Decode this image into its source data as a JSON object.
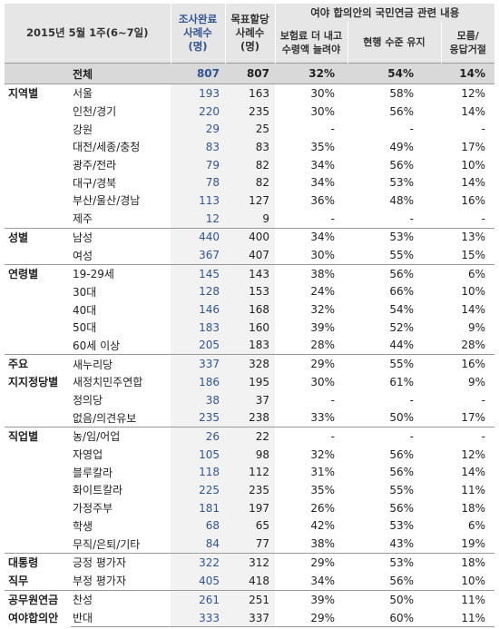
{
  "header": {
    "title": "2015년 5월 1주(6~7일)",
    "col_survey": "조사완료\n사례수\n(명)",
    "col_target": "목표할당\n사례수\n(명)",
    "col_group": "여야 합의안의 국민연금 관련 내용",
    "col_opt1": "보험료 더 내고\n수령액 늘려야",
    "col_opt2": "현행 수준 유지",
    "col_opt3": "모름/\n응답거절"
  },
  "total": {
    "label": "전체",
    "n": "807",
    "t": "807",
    "p1": "32%",
    "p2": "54%",
    "p3": "14%"
  },
  "groups": [
    {
      "name": "지역별",
      "rows": [
        {
          "label": "서울",
          "n": "193",
          "t": "163",
          "p1": "30%",
          "p2": "58%",
          "p3": "12%"
        },
        {
          "label": "인천/경기",
          "n": "220",
          "t": "235",
          "p1": "30%",
          "p2": "56%",
          "p3": "14%"
        },
        {
          "label": "강원",
          "n": "29",
          "t": "25",
          "p1": "-",
          "p2": "-",
          "p3": "-"
        },
        {
          "label": "대전/세종/충청",
          "n": "83",
          "t": "83",
          "p1": "35%",
          "p2": "49%",
          "p3": "17%"
        },
        {
          "label": "광주/전라",
          "n": "79",
          "t": "82",
          "p1": "34%",
          "p2": "56%",
          "p3": "10%"
        },
        {
          "label": "대구/경북",
          "n": "78",
          "t": "82",
          "p1": "34%",
          "p2": "53%",
          "p3": "14%"
        },
        {
          "label": "부산/울산/경남",
          "n": "113",
          "t": "127",
          "p1": "36%",
          "p2": "48%",
          "p3": "16%"
        },
        {
          "label": "제주",
          "n": "12",
          "t": "9",
          "p1": "-",
          "p2": "-",
          "p3": "-"
        }
      ]
    },
    {
      "name": "성별",
      "rows": [
        {
          "label": "남성",
          "n": "440",
          "t": "400",
          "p1": "34%",
          "p2": "53%",
          "p3": "13%"
        },
        {
          "label": "여성",
          "n": "367",
          "t": "407",
          "p1": "30%",
          "p2": "55%",
          "p3": "15%"
        }
      ]
    },
    {
      "name": "연령별",
      "rows": [
        {
          "label": "19-29세",
          "n": "145",
          "t": "143",
          "p1": "38%",
          "p2": "56%",
          "p3": "6%"
        },
        {
          "label": "30대",
          "n": "128",
          "t": "153",
          "p1": "24%",
          "p2": "66%",
          "p3": "10%"
        },
        {
          "label": "40대",
          "n": "146",
          "t": "168",
          "p1": "32%",
          "p2": "54%",
          "p3": "14%"
        },
        {
          "label": "50대",
          "n": "183",
          "t": "160",
          "p1": "39%",
          "p2": "52%",
          "p3": "9%"
        },
        {
          "label": "60세 이상",
          "n": "205",
          "t": "183",
          "p1": "28%",
          "p2": "44%",
          "p3": "28%"
        }
      ]
    },
    {
      "name": "주요\n지지정당별",
      "rows": [
        {
          "label": "새누리당",
          "n": "337",
          "t": "328",
          "p1": "29%",
          "p2": "55%",
          "p3": "16%"
        },
        {
          "label": "새정치민주연합",
          "n": "186",
          "t": "195",
          "p1": "30%",
          "p2": "61%",
          "p3": "9%"
        },
        {
          "label": "정의당",
          "n": "38",
          "t": "37",
          "p1": "-",
          "p2": "-",
          "p3": "-"
        },
        {
          "label": "없음/의견유보",
          "n": "235",
          "t": "238",
          "p1": "33%",
          "p2": "50%",
          "p3": "17%"
        }
      ]
    },
    {
      "name": "직업별",
      "rows": [
        {
          "label": "농/임/어업",
          "n": "26",
          "t": "22",
          "p1": "-",
          "p2": "-",
          "p3": "-"
        },
        {
          "label": "자영업",
          "n": "105",
          "t": "98",
          "p1": "32%",
          "p2": "56%",
          "p3": "12%"
        },
        {
          "label": "블루칼라",
          "n": "118",
          "t": "112",
          "p1": "31%",
          "p2": "56%",
          "p3": "14%"
        },
        {
          "label": "화이트칼라",
          "n": "225",
          "t": "235",
          "p1": "35%",
          "p2": "55%",
          "p3": "11%"
        },
        {
          "label": "가정주부",
          "n": "181",
          "t": "197",
          "p1": "26%",
          "p2": "56%",
          "p3": "18%"
        },
        {
          "label": "학생",
          "n": "68",
          "t": "65",
          "p1": "42%",
          "p2": "53%",
          "p3": "6%"
        },
        {
          "label": "무직/은퇴/기타",
          "n": "84",
          "t": "77",
          "p1": "38%",
          "p2": "43%",
          "p3": "19%"
        }
      ]
    },
    {
      "name": "대통령\n직무",
      "rows": [
        {
          "label": "긍정 평가자",
          "n": "322",
          "t": "312",
          "p1": "29%",
          "p2": "53%",
          "p3": "18%"
        },
        {
          "label": "부정 평가자",
          "n": "405",
          "t": "418",
          "p1": "34%",
          "p2": "56%",
          "p3": "10%"
        }
      ]
    },
    {
      "name": "공무원연금\n여야합의안",
      "rows": [
        {
          "label": "찬성",
          "n": "261",
          "t": "251",
          "p1": "39%",
          "p2": "50%",
          "p3": "11%"
        },
        {
          "label": "반대",
          "n": "333",
          "t": "337",
          "p1": "29%",
          "p2": "60%",
          "p3": "11%"
        }
      ]
    }
  ]
}
